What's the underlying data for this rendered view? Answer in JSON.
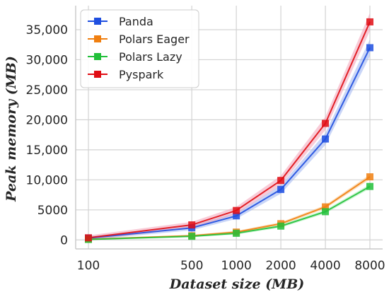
{
  "chart_data": {
    "type": "line",
    "title": "",
    "xlabel": "Dataset size (MB)",
    "ylabel": "Peak memory (MB)",
    "x_scale": "log",
    "x": [
      100,
      500,
      1000,
      2000,
      4000,
      8000
    ],
    "x_tick_labels": [
      "100",
      "500",
      "1000",
      "2000",
      "4000",
      "8000"
    ],
    "ylim": [
      -1500,
      39000
    ],
    "y_ticks": [
      0,
      5000,
      10000,
      15000,
      20000,
      25000,
      30000,
      35000
    ],
    "y_tick_labels": [
      "0",
      "5000",
      "10,000",
      "15,000",
      "20,000",
      "25,000",
      "30,000",
      "35,000"
    ],
    "grid": true,
    "legend_position": "top-left",
    "series": [
      {
        "name": "Panda",
        "color": "#1f4fe0",
        "band_color": "#9fb4f0",
        "values": [
          300,
          2000,
          4000,
          8400,
          16800,
          32000
        ],
        "band": [
          300,
          400,
          500,
          700,
          1000,
          1400
        ]
      },
      {
        "name": "Polars Eager",
        "color": "#f07f10",
        "band_color": "#f8c48a",
        "values": [
          100,
          700,
          1300,
          2700,
          5500,
          10500
        ],
        "band": [
          100,
          150,
          200,
          250,
          300,
          400
        ]
      },
      {
        "name": "Polars Lazy",
        "color": "#22c03a",
        "band_color": "#a4eeb0",
        "values": [
          80,
          600,
          1100,
          2300,
          4700,
          8900
        ],
        "band": [
          100,
          150,
          200,
          250,
          300,
          350
        ]
      },
      {
        "name": "Pyspark",
        "color": "#e00d14",
        "band_color": "#f2a3b8",
        "values": [
          350,
          2500,
          4900,
          9900,
          19400,
          36300
        ],
        "band": [
          400,
          500,
          600,
          800,
          1100,
          1500
        ]
      }
    ]
  }
}
